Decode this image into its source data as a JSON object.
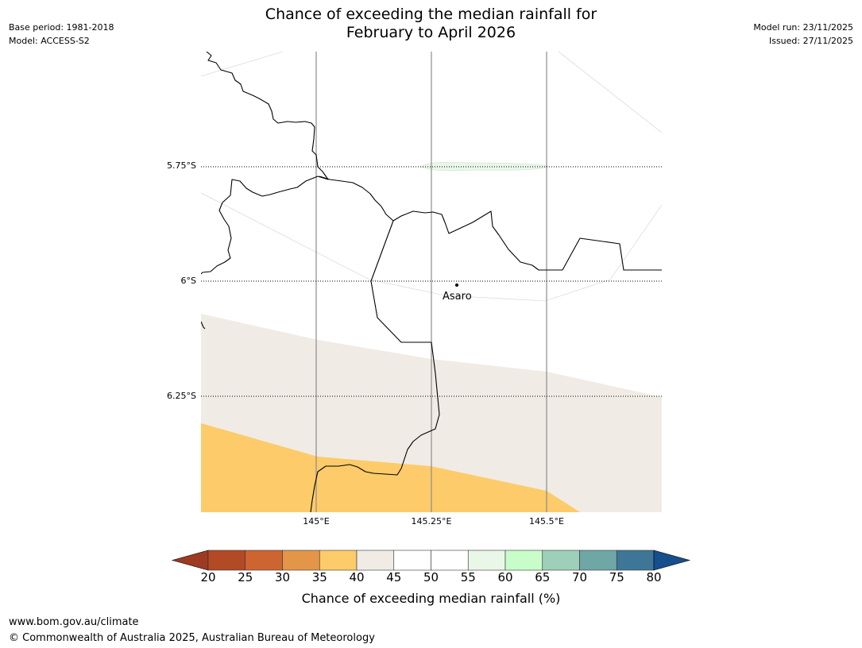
{
  "header": {
    "title_line1": "Chance of exceeding the median rainfall for",
    "title_line2": "February to April 2026",
    "base_period": "Base period: 1981-2018",
    "model": "Model: ACCESS-S2",
    "model_run": "Model run: 23/11/2025",
    "issued": "Issued: 27/11/2025"
  },
  "map": {
    "latitude_labels": [
      "5.75°S",
      "6°S",
      "6.25°S"
    ],
    "longitude_labels": [
      "145°E",
      "145.25°E",
      "145.5°E"
    ],
    "town": "Asaro",
    "category_colors": {
      "35-40": "#fdcb69",
      "40-45": "#f0ebe5",
      "45-55": "#ffffff",
      "55-60": "#e9f7e9"
    }
  },
  "colorbar": {
    "ticks": [
      "20",
      "25",
      "30",
      "35",
      "40",
      "45",
      "50",
      "55",
      "60",
      "65",
      "70",
      "75",
      "80"
    ],
    "colors": [
      "#9c3b22",
      "#b24a25",
      "#cd6531",
      "#e39647",
      "#fdcb69",
      "#f0ebe5",
      "#ffffff",
      "#ffffff",
      "#e9f7e9",
      "#c8fcc8",
      "#9ecfb8",
      "#6fa6a6",
      "#3e7698",
      "#154f8c"
    ],
    "label": "Chance of exceeding median rainfall (%)"
  },
  "footer": {
    "website": "www.bom.gov.au/climate",
    "copyright": "© Commonwealth of Australia 2025, Australian Bureau of Meteorology"
  }
}
